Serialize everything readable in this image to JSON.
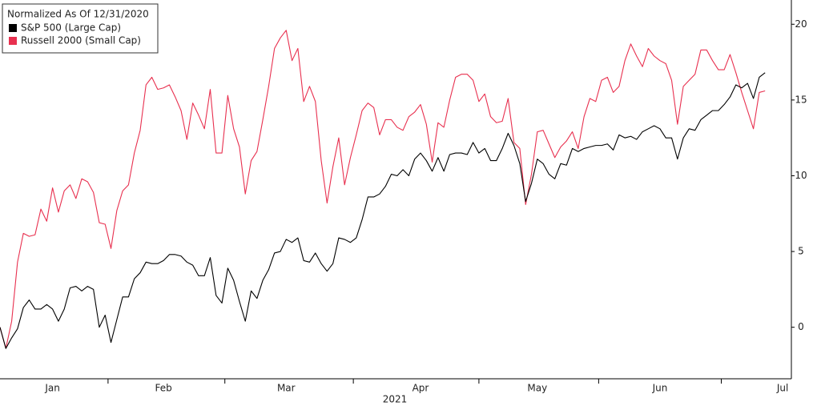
{
  "chart_data": {
    "type": "line",
    "legend_title": "Normalized As Of 12/31/2020",
    "x_label": "2021",
    "x": [
      0,
      1,
      2,
      3,
      4,
      5,
      6,
      7,
      8,
      9,
      10,
      11,
      12,
      13,
      14,
      15,
      16,
      17,
      18,
      19,
      20,
      21,
      22,
      23,
      24,
      25,
      26,
      27,
      28,
      29,
      30,
      31,
      32,
      33,
      34,
      35,
      36,
      37,
      38,
      39,
      40,
      41,
      42,
      43,
      44,
      45,
      46,
      47,
      48,
      49,
      50,
      51,
      52,
      53,
      54,
      55,
      56,
      57,
      58,
      59,
      60,
      61,
      62,
      63,
      64,
      65,
      66,
      67,
      68,
      69,
      70,
      71,
      72,
      73,
      74,
      75,
      76,
      77,
      78,
      79,
      80,
      81,
      82,
      83,
      84,
      85,
      86,
      87,
      88,
      89,
      90,
      91,
      92,
      93,
      94,
      95,
      96,
      97,
      98,
      99,
      100,
      101,
      102,
      103,
      104,
      105,
      106,
      107,
      108,
      109,
      110,
      111,
      112,
      113,
      114,
      115,
      116,
      117,
      118,
      119,
      120,
      121,
      122,
      123,
      124,
      125,
      126,
      127,
      128,
      129,
      130,
      131
    ],
    "xlim": [
      0,
      135.5
    ],
    "xticks": [
      {
        "value": 9,
        "label": "Jan"
      },
      {
        "value": 28,
        "label": "Feb"
      },
      {
        "value": 49,
        "label": "Mar"
      },
      {
        "value": 72,
        "label": "Apr"
      },
      {
        "value": 92,
        "label": "May"
      },
      {
        "value": 113,
        "label": "Jun"
      },
      {
        "value": 134,
        "label": "Jul"
      }
    ],
    "ylim": [
      -3.4,
      21.6
    ],
    "yticks": [
      0,
      5,
      10,
      15,
      20
    ],
    "legend": "upper-left",
    "series": [
      {
        "name": "S&P 500 (Large Cap)",
        "color": "#000000",
        "values": [
          0,
          -1.4,
          -0.7,
          -0.1,
          1.3,
          1.8,
          1.2,
          1.2,
          1.5,
          1.2,
          0.4,
          1.2,
          2.6,
          2.7,
          2.4,
          2.7,
          2.5,
          0,
          0.8,
          -1.0,
          0.5,
          2.0,
          2.0,
          3.2,
          3.6,
          4.3,
          4.2,
          4.2,
          4.4,
          4.8,
          4.8,
          4.7,
          4.3,
          4.1,
          3.4,
          3.4,
          4.6,
          2.1,
          1.6,
          3.9,
          3.1,
          1.7,
          0.4,
          2.4,
          1.9,
          3.1,
          3.8,
          4.9,
          5.0,
          5.8,
          5.6,
          5.9,
          4.4,
          4.3,
          4.9,
          4.2,
          3.7,
          4.2,
          5.9,
          5.8,
          5.6,
          5.9,
          7.1,
          8.6,
          8.6,
          8.8,
          9.3,
          10.1,
          10.0,
          10.4,
          10.0,
          11.1,
          11.5,
          11.0,
          10.3,
          11.2,
          10.3,
          11.4,
          11.5,
          11.5,
          11.4,
          12.2,
          11.5,
          11.8,
          11.0,
          11.0,
          11.8,
          12.8,
          12.0,
          10.8,
          8.3,
          9.5,
          11.1,
          10.8,
          10.1,
          9.8,
          10.8,
          10.7,
          11.8,
          11.6,
          11.8,
          11.9,
          12.0,
          12.0,
          12.1,
          11.7,
          12.7,
          12.5,
          12.6,
          12.4,
          12.9,
          13.1,
          13.3,
          13.1,
          12.5,
          12.5,
          11.1,
          12.5,
          13.1,
          13.0,
          13.7,
          14.0,
          14.3,
          14.3,
          14.7,
          15.2,
          16.0,
          15.8,
          16.1,
          15.1,
          16.5,
          16.8
        ]
      },
      {
        "name": "Russell 2000 (Small Cap)",
        "color": "#e8304f",
        "values": [
          0,
          -1.4,
          0.4,
          4.3,
          6.2,
          6.0,
          6.1,
          7.8,
          7.0,
          9.2,
          7.6,
          9.0,
          9.4,
          8.5,
          9.8,
          9.6,
          8.9,
          6.9,
          6.8,
          5.2,
          7.7,
          9.0,
          9.4,
          11.5,
          13.0,
          16.0,
          16.5,
          15.7,
          15.8,
          16.0,
          15.2,
          14.3,
          12.4,
          14.8,
          14.0,
          13.1,
          15.7,
          11.5,
          11.5,
          15.3,
          13.1,
          11.9,
          8.8,
          11.0,
          11.6,
          13.7,
          15.9,
          18.4,
          19.1,
          19.6,
          17.6,
          18.4,
          14.9,
          15.9,
          14.9,
          11.0,
          8.2,
          10.6,
          12.5,
          9.4,
          11.2,
          12.7,
          14.3,
          14.8,
          14.5,
          12.7,
          13.7,
          13.7,
          13.2,
          13.0,
          13.9,
          14.2,
          14.7,
          13.4,
          10.9,
          13.5,
          13.2,
          15.0,
          16.5,
          16.7,
          16.7,
          16.3,
          14.9,
          15.4,
          13.9,
          13.5,
          13.6,
          15.1,
          12.2,
          11.8,
          8.1,
          10.1,
          12.9,
          13.0,
          12.1,
          11.2,
          11.9,
          12.3,
          12.9,
          11.8,
          13.9,
          15.1,
          14.9,
          16.3,
          16.5,
          15.5,
          15.9,
          17.6,
          18.7,
          17.9,
          17.2,
          18.4,
          17.9,
          17.6,
          17.4,
          16.3,
          13.4,
          15.9,
          16.3,
          16.7,
          18.3,
          18.3,
          17.6,
          17.0,
          17.0,
          18.0,
          16.8,
          15.5,
          14.3,
          13.1,
          15.5,
          15.6
        ]
      }
    ]
  }
}
